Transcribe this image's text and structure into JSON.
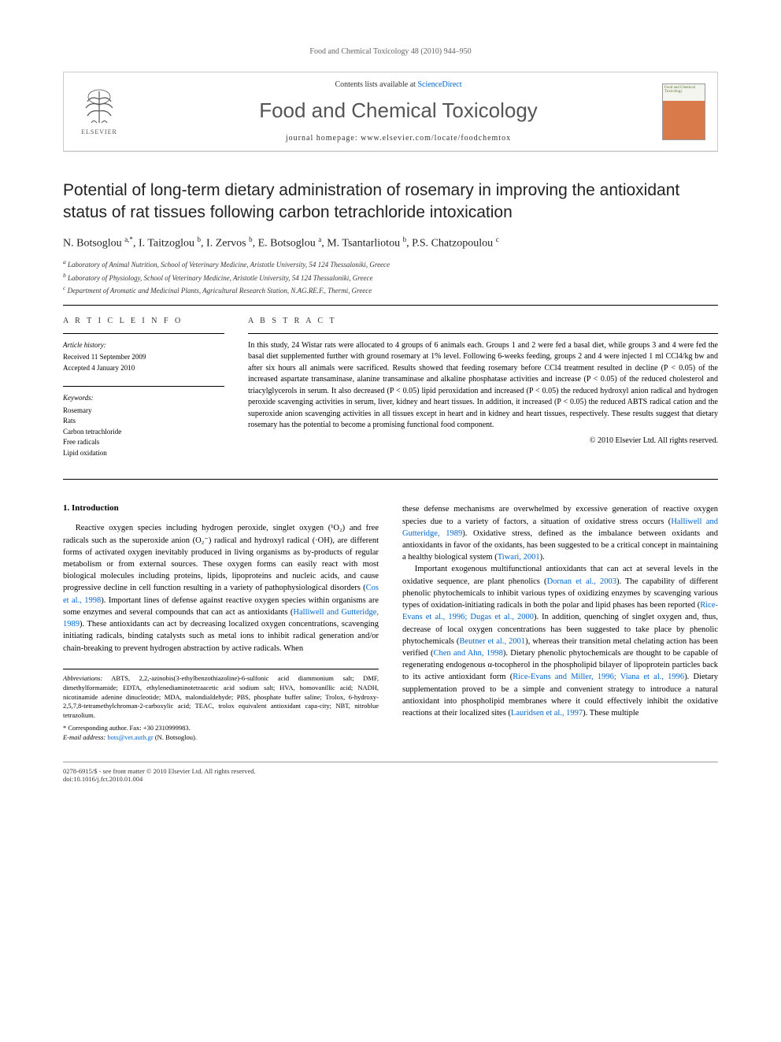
{
  "running_head": "Food and Chemical Toxicology 48 (2010) 944–950",
  "header": {
    "contents_prefix": "Contents lists available at ",
    "contents_link": "ScienceDirect",
    "journal": "Food and Chemical Toxicology",
    "homepage_prefix": "journal homepage: ",
    "homepage_url": "www.elsevier.com/locate/foodchemtox",
    "elsevier_label": "ELSEVIER",
    "cover_text": "Food and Chemical Toxicology"
  },
  "title": "Potential of long-term dietary administration of rosemary in improving the antioxidant status of rat tissues following carbon tetrachloride intoxication",
  "authors_html": "N. Botsoglou <sup>a,*</sup>, I. Taitzoglou <sup>b</sup>, I. Zervos <sup>b</sup>, E. Botsoglou <sup>a</sup>, M. Tsantarliotou <sup>b</sup>, P.S. Chatzopoulou <sup>c</sup>",
  "affiliations": [
    "a Laboratory of Animal Nutrition, School of Veterinary Medicine, Aristotle University, 54 124 Thessaloniki, Greece",
    "b Laboratory of Physiology, School of Veterinary Medicine, Aristotle University, 54 124 Thessaloniki, Greece",
    "c Department of Aromatic and Medicinal Plants, Agricultural Research Station, N.AG.RE.F., Thermi, Greece"
  ],
  "article_info": {
    "label": "A R T I C L E   I N F O",
    "history_label": "Article history:",
    "received": "Received 11 September 2009",
    "accepted": "Accepted 4 January 2010",
    "keywords_label": "Keywords:",
    "keywords": [
      "Rosemary",
      "Rats",
      "Carbon tetrachloride",
      "Free radicals",
      "Lipid oxidation"
    ]
  },
  "abstract": {
    "label": "A B S T R A C T",
    "text": "In this study, 24 Wistar rats were allocated to 4 groups of 6 animals each. Groups 1 and 2 were fed a basal diet, while groups 3 and 4 were fed the basal diet supplemented further with ground rosemary at 1% level. Following 6-weeks feeding, groups 2 and 4 were injected 1 ml CCl4/kg bw and after six hours all animals were sacrificed. Results showed that feeding rosemary before CCl4 treatment resulted in decline (P < 0.05) of the increased aspartate transaminase, alanine transaminase and alkaline phosphatase activities and increase (P < 0.05) of the reduced cholesterol and triacylglycerols in serum. It also decreased (P < 0.05) lipid peroxidation and increased (P < 0.05) the reduced hydroxyl anion radical and hydrogen peroxide scavenging activities in serum, liver, kidney and heart tissues. In addition, it increased (P < 0.05) the reduced ABTS radical cation and the superoxide anion scavenging activities in all tissues except in heart and in kidney and heart tissues, respectively. These results suggest that dietary rosemary has the potential to become a promising functional food component.",
    "copyright": "© 2010 Elsevier Ltd. All rights reserved."
  },
  "section1": {
    "heading": "1. Introduction",
    "para1_pre": "Reactive oxygen species including hydrogen peroxide, singlet oxygen (¹O₂) and free radicals such as the superoxide anion (O₂⁻) radical and hydroxyl radical (·OH), are different forms of activated oxygen inevitably produced in living organisms as by-products of regular metabolism or from external sources. These oxygen forms can easily react with most biological molecules including proteins, lipids, lipoproteins and nucleic acids, and cause progressive decline in cell function resulting in a variety of pathophysiological disorders (",
    "cite1": "Cos et al., 1998",
    "para1_mid": "). Important lines of defense against reactive oxygen species within organisms are some enzymes and several compounds that can act as antioxidants (",
    "cite2": "Halliwell and Gutteridge, 1989",
    "para1_post": "). These antioxidants can act by decreasing localized oxygen concentrations, scavenging initiating radicals, binding catalysts such as metal ions to inhibit radical generation and/or chain-breaking to prevent hydrogen abstraction by active radicals. When",
    "para2_pre": "these defense mechanisms are overwhelmed by excessive generation of reactive oxygen species due to a variety of factors, a situation of oxidative stress occurs (",
    "cite3": "Halliwell and Gutteridge, 1989",
    "para2_mid": "). Oxidative stress, defined as the imbalance between oxidants and antioxidants in favor of the oxidants, has been suggested to be a critical concept in maintaining a healthy biological system (",
    "cite4": "Tiwari, 2001",
    "para2_post": ").",
    "para3_pre": "Important exogenous multifunctional antioxidants that can act at several levels in the oxidative sequence, are plant phenolics (",
    "cite5": "Dornan et al., 2003",
    "para3_a": "). The capability of different phenolic phytochemicals to inhibit various types of oxidizing enzymes by scavenging various types of oxidation-initiating radicals in both the polar and lipid phases has been reported (",
    "cite6": "Rice-Evans et al., 1996; Dugas et al., 2000",
    "para3_b": "). In addition, quenching of singlet oxygen and, thus, decrease of local oxygen concentrations has been suggested to take place by phenolic phytochemicals (",
    "cite7": "Beutner et al., 2001",
    "para3_c": "), whereas their transition metal chelating action has been verified (",
    "cite8": "Chen and Ahn, 1998",
    "para3_d": "). Dietary phenolic phytochemicals are thought to be capable of regenerating endogenous α-tocopherol in the phospholipid bilayer of lipoprotein particles back to its active antioxidant form (",
    "cite9": "Rice-Evans and Miller, 1996; Viana et al., 1996",
    "para3_e": "). Dietary supplementation proved to be a simple and convenient strategy to introduce a natural antioxidant into phospholipid membranes where it could effectively inhibit the oxidative reactions at their localized sites (",
    "cite10": "Lauridsen et al., 1997",
    "para3_f": "). These multiple"
  },
  "footnotes": {
    "abbr_label": "Abbreviations:",
    "abbr_text": " ABTS, 2,2,-azinobis(3-ethylbenzothiazoline)-6-sulfonic acid diammonium salt; DMF, dimethylformamide; EDTA, ethylenediaminotetraacetic acid sodium salt; HVA, homovanillic acid; NADH, nicotinamide adenine dinucleotide; MDA, malondialdehyde; PBS, phosphate buffer saline; Trolox, 6-hydroxy-2,5,7,8-tetramethylchroman-2-carboxylic acid; TEAC, trolox equivalent antioxidant capa-city; NBT, nitroblue tetrazolium.",
    "corr_label": "* Corresponding author. Fax: +30 2310999983.",
    "email_label": "E-mail address: ",
    "email": "bots@vet.auth.gr",
    "email_suffix": " (N. Botsoglou)."
  },
  "footer": {
    "left1": "0278-6915/$ - see front matter © 2010 Elsevier Ltd. All rights reserved.",
    "left2": "doi:10.1016/j.fct.2010.01.004"
  },
  "colors": {
    "link": "#0066cc",
    "text": "#000000",
    "muted": "#666666",
    "border": "#cccccc",
    "journal_gray": "#555555"
  }
}
